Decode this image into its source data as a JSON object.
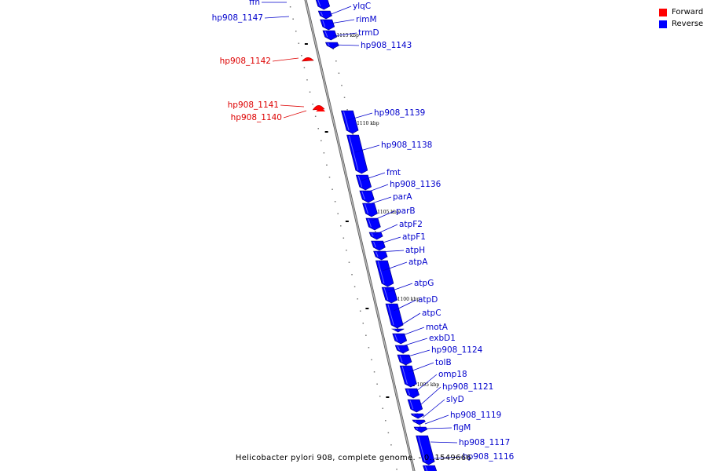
{
  "colors": {
    "forward": "#ff0000",
    "reverse": "#0000ff",
    "axis": "#777777"
  },
  "legend": [
    {
      "label": "Forward",
      "color": "#ff0000"
    },
    {
      "label": "Reverse",
      "color": "#0000ff"
    }
  ],
  "title": "Helicobacter pylori 908, complete genome. - 0..1549666",
  "kbp_ticks": [
    "1115 kbp",
    "1110 kbp",
    "1105 kbp",
    "1100 kbp",
    "1095 kbp"
  ],
  "genes": [
    {
      "label": "ffh",
      "strand": "reverse"
    },
    {
      "label": "ylqC",
      "strand": "reverse"
    },
    {
      "label": "hp908_1147",
      "strand": "reverse"
    },
    {
      "label": "rimM",
      "strand": "reverse"
    },
    {
      "label": "trmD",
      "strand": "reverse"
    },
    {
      "label": "hp908_1143",
      "strand": "reverse"
    },
    {
      "label": "hp908_1142",
      "strand": "forward"
    },
    {
      "label": "hp908_1141",
      "strand": "forward"
    },
    {
      "label": "hp908_1140",
      "strand": "forward"
    },
    {
      "label": "hp908_1139",
      "strand": "reverse"
    },
    {
      "label": "hp908_1138",
      "strand": "reverse"
    },
    {
      "label": "fmt",
      "strand": "reverse"
    },
    {
      "label": "hp908_1136",
      "strand": "reverse"
    },
    {
      "label": "parA",
      "strand": "reverse"
    },
    {
      "label": "parB",
      "strand": "reverse"
    },
    {
      "label": "atpF2",
      "strand": "reverse"
    },
    {
      "label": "atpF1",
      "strand": "reverse"
    },
    {
      "label": "atpH",
      "strand": "reverse"
    },
    {
      "label": "atpA",
      "strand": "reverse"
    },
    {
      "label": "atpG",
      "strand": "reverse"
    },
    {
      "label": "atpD",
      "strand": "reverse"
    },
    {
      "label": "atpC",
      "strand": "reverse"
    },
    {
      "label": "motA",
      "strand": "reverse"
    },
    {
      "label": "exbD1",
      "strand": "reverse"
    },
    {
      "label": "hp908_1124",
      "strand": "reverse"
    },
    {
      "label": "tolB",
      "strand": "reverse"
    },
    {
      "label": "omp18",
      "strand": "reverse"
    },
    {
      "label": "hp908_1121",
      "strand": "reverse"
    },
    {
      "label": "slyD",
      "strand": "reverse"
    },
    {
      "label": "hp908_1119",
      "strand": "reverse"
    },
    {
      "label": "flgM",
      "strand": "reverse"
    },
    {
      "label": "hp908_1117",
      "strand": "reverse"
    },
    {
      "label": "hp908_1116",
      "strand": "reverse"
    }
  ]
}
